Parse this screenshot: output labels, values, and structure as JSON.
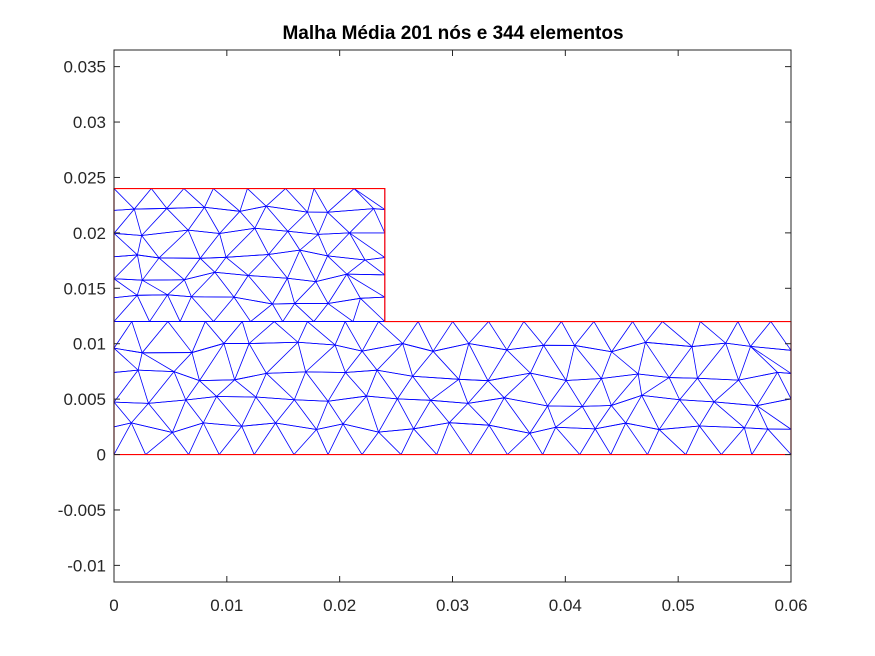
{
  "chart_data": {
    "type": "mesh",
    "title": "Malha Média 201 nós e 344 elementos",
    "xlabel": "",
    "ylabel": "",
    "xlim": [
      0,
      0.06
    ],
    "ylim": [
      -0.0115,
      0.0365
    ],
    "x_ticks": [
      "0",
      "0.01",
      "0.02",
      "0.03",
      "0.04",
      "0.05",
      "0.06"
    ],
    "y_ticks": [
      "-0.01",
      "-0.005",
      "0",
      "0.005",
      "0.01",
      "0.015",
      "0.02",
      "0.025",
      "0.03",
      "0.035"
    ],
    "grid": false,
    "boundary": [
      [
        0,
        0
      ],
      [
        0.06,
        0
      ],
      [
        0.06,
        0.012
      ],
      [
        0.024,
        0.012
      ],
      [
        0.024,
        0.024
      ],
      [
        0,
        0.024
      ],
      [
        0,
        0
      ]
    ],
    "mesh_summary": {
      "nodes": 201,
      "elements": 344
    },
    "colors": {
      "mesh": "#0000ff",
      "boundary": "#ff0000",
      "axes": "#262626"
    }
  }
}
